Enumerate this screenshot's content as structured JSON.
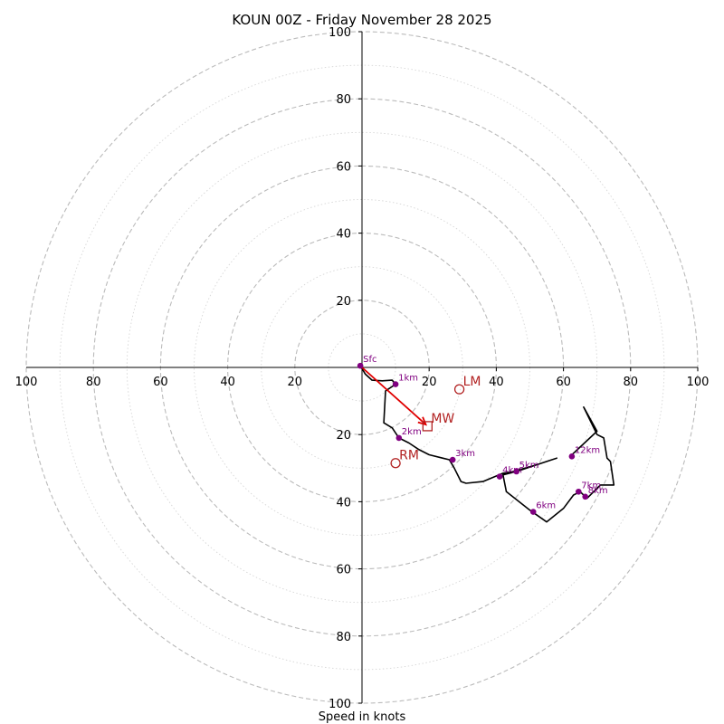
{
  "chart_data": {
    "type": "hodograph",
    "title": "KOUN 00Z - Friday November 28 2025",
    "xlabel": "Speed in knots",
    "range_knots": 100,
    "dashed_ring_step": 20,
    "dotted_ring_step": 10,
    "tick_labels": [
      "100",
      "80",
      "60",
      "40",
      "20",
      "20",
      "40",
      "60",
      "80",
      "100"
    ],
    "tick_values": [
      -100,
      -80,
      -60,
      -40,
      -20,
      20,
      40,
      60,
      80,
      100
    ],
    "wind_profile_uv": [
      [
        -0.5,
        0.5
      ],
      [
        1,
        -2
      ],
      [
        3,
        -3.8
      ],
      [
        6,
        -4
      ],
      [
        9,
        -3.8
      ],
      [
        10,
        -5
      ],
      [
        7,
        -7
      ],
      [
        6.5,
        -16.5
      ],
      [
        9,
        -18
      ],
      [
        11,
        -21
      ],
      [
        14,
        -22.5
      ],
      [
        17,
        -24.5
      ],
      [
        20,
        -26
      ],
      [
        24,
        -27
      ],
      [
        26,
        -27.5
      ],
      [
        27.5,
        -30
      ],
      [
        29.5,
        -34
      ],
      [
        31,
        -34.5
      ],
      [
        36,
        -34
      ],
      [
        42,
        -31.5
      ],
      [
        45,
        -31
      ],
      [
        52,
        -29
      ],
      [
        58,
        -27
      ],
      [
        46,
        -31
      ],
      [
        42,
        -32
      ],
      [
        43,
        -37
      ],
      [
        50,
        -42.5
      ],
      [
        55,
        -46
      ],
      [
        60,
        -42
      ],
      [
        63,
        -38
      ],
      [
        65,
        -37
      ],
      [
        67,
        -39
      ],
      [
        71,
        -35
      ],
      [
        75,
        -35
      ],
      [
        74,
        -28
      ],
      [
        73,
        -27
      ],
      [
        72,
        -21
      ],
      [
        70,
        -20
      ],
      [
        66,
        -11.8
      ],
      [
        70,
        -19
      ],
      [
        62,
        -26.5
      ]
    ],
    "height_markers": [
      {
        "label": "Sfc",
        "u": -0.5,
        "v": 0.5
      },
      {
        "label": "1km",
        "u": 10,
        "v": -5
      },
      {
        "label": "2km",
        "u": 11,
        "v": -21
      },
      {
        "label": "3km",
        "u": 27,
        "v": -27.5
      },
      {
        "label": "4km",
        "u": 41,
        "v": -32.5
      },
      {
        "label": "5km",
        "u": 46,
        "v": -31
      },
      {
        "label": "6km",
        "u": 51,
        "v": -43
      },
      {
        "label": "7km",
        "u": 64.5,
        "v": -37
      },
      {
        "label": "8km",
        "u": 66.5,
        "v": -38.5
      },
      {
        "label": "12km",
        "u": 62.5,
        "v": -26.5
      }
    ],
    "storm_motion": [
      {
        "label": "LM",
        "u": 29,
        "v": -6.5,
        "marker": "circle"
      },
      {
        "label": "RM",
        "u": 10,
        "v": -28.5,
        "marker": "circle"
      },
      {
        "label": "MW",
        "u": 19.5,
        "v": -17.5,
        "marker": "square"
      }
    ],
    "shear_arrow": {
      "from": [
        0,
        0
      ],
      "to": [
        19,
        -17
      ]
    },
    "colors": {
      "profile": "#000000",
      "markers": "#800080",
      "storm": "#b22222",
      "arrow": "#e00000",
      "rings": "#bbbbbb",
      "axes": "#000000"
    }
  }
}
